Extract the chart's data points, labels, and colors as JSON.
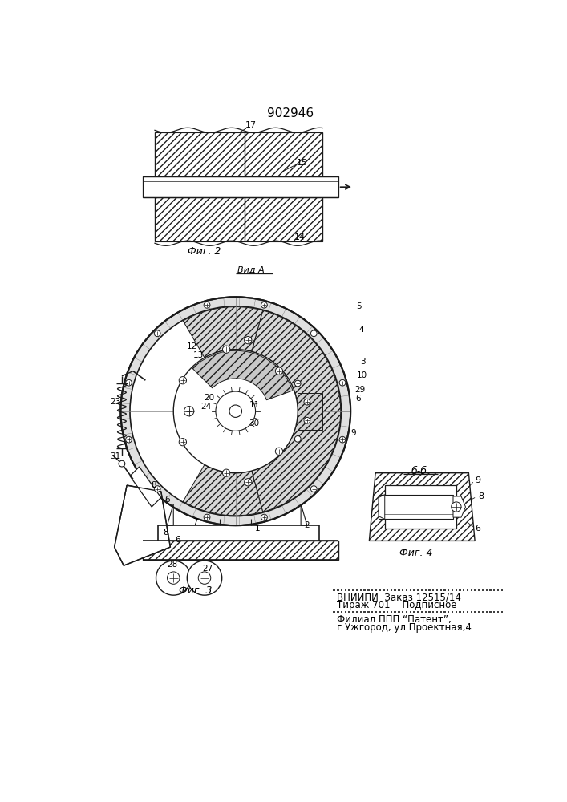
{
  "title": "902946",
  "fig2_caption": "Фиг. 2",
  "fig3_caption": "Фиг. 3",
  "fig4_caption": "Фиг. 4",
  "section_a_label": "Вид A",
  "section_b_label": "б-б",
  "footer_line1": "ВНИИПИ  Заказ 12515/14",
  "footer_line2": "Тираж 701    Подписное",
  "footer_line3": "Филиал ППП “Патент”,",
  "footer_line4": "г.Ужгород, ул.Проектная,4",
  "bg_color": "#ffffff",
  "line_color": "#1a1a1a"
}
